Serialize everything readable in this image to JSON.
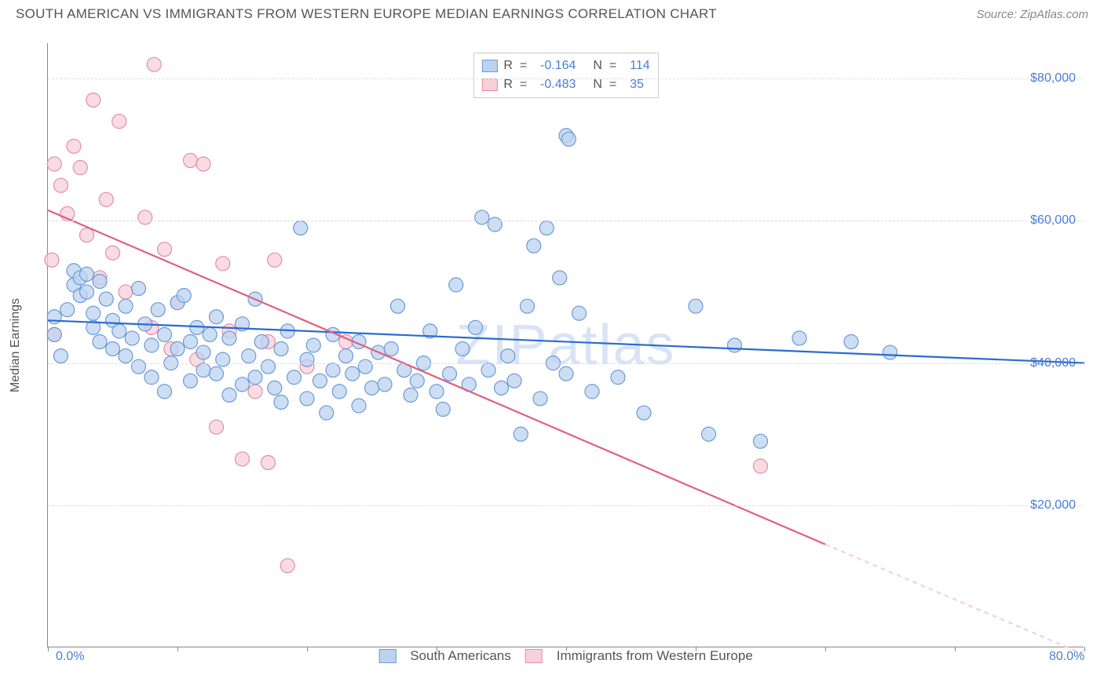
{
  "title": "SOUTH AMERICAN VS IMMIGRANTS FROM WESTERN EUROPE MEDIAN EARNINGS CORRELATION CHART",
  "source": "Source: ZipAtlas.com",
  "watermark": "ZIPatlas",
  "y_axis_label": "Median Earnings",
  "chart": {
    "type": "scatter",
    "xlim": [
      0,
      80
    ],
    "ylim": [
      0,
      85000
    ],
    "x_ticks": [
      0,
      10,
      20,
      30,
      40,
      50,
      60,
      70,
      80
    ],
    "x_tick_labels_shown": {
      "0": "0.0%",
      "80": "80.0%"
    },
    "y_ticks": [
      20000,
      40000,
      60000,
      80000
    ],
    "y_tick_labels": [
      "$20,000",
      "$40,000",
      "$60,000",
      "$80,000"
    ],
    "grid_color": "#dddddd",
    "axis_color": "#888888",
    "background_color": "#ffffff",
    "marker_radius": 9,
    "marker_stroke_width": 1.2,
    "trend_line_width": 2.2
  },
  "series": [
    {
      "name": "South Americans",
      "fill_color": "#bcd3f0",
      "stroke_color": "#6a9ad8",
      "line_color": "#2b6bd1",
      "R": "-0.164",
      "N": "114",
      "trend": {
        "x1": 0,
        "y1": 46000,
        "x2": 80,
        "y2": 40000
      },
      "points": [
        [
          0.5,
          44000
        ],
        [
          0.5,
          46500
        ],
        [
          1,
          41000
        ],
        [
          1.5,
          47500
        ],
        [
          2,
          51000
        ],
        [
          2,
          53000
        ],
        [
          2.5,
          52000
        ],
        [
          2.5,
          49500
        ],
        [
          3,
          52500
        ],
        [
          3,
          50000
        ],
        [
          3.5,
          47000
        ],
        [
          3.5,
          45000
        ],
        [
          4,
          51500
        ],
        [
          4,
          43000
        ],
        [
          4.5,
          49000
        ],
        [
          5,
          46000
        ],
        [
          5,
          42000
        ],
        [
          5.5,
          44500
        ],
        [
          6,
          48000
        ],
        [
          6,
          41000
        ],
        [
          6.5,
          43500
        ],
        [
          7,
          50500
        ],
        [
          7,
          39500
        ],
        [
          7.5,
          45500
        ],
        [
          8,
          42500
        ],
        [
          8,
          38000
        ],
        [
          8.5,
          47500
        ],
        [
          9,
          36000
        ],
        [
          9,
          44000
        ],
        [
          9.5,
          40000
        ],
        [
          10,
          48500
        ],
        [
          10,
          42000
        ],
        [
          10.5,
          49500
        ],
        [
          11,
          43000
        ],
        [
          11,
          37500
        ],
        [
          11.5,
          45000
        ],
        [
          12,
          39000
        ],
        [
          12,
          41500
        ],
        [
          12.5,
          44000
        ],
        [
          13,
          38500
        ],
        [
          13,
          46500
        ],
        [
          13.5,
          40500
        ],
        [
          14,
          35500
        ],
        [
          14,
          43500
        ],
        [
          15,
          37000
        ],
        [
          15,
          45500
        ],
        [
          15.5,
          41000
        ],
        [
          16,
          38000
        ],
        [
          16,
          49000
        ],
        [
          16.5,
          43000
        ],
        [
          17,
          39500
        ],
        [
          17.5,
          36500
        ],
        [
          18,
          42000
        ],
        [
          18,
          34500
        ],
        [
          18.5,
          44500
        ],
        [
          19,
          38000
        ],
        [
          19.5,
          59000
        ],
        [
          20,
          40500
        ],
        [
          20,
          35000
        ],
        [
          20.5,
          42500
        ],
        [
          21,
          37500
        ],
        [
          21.5,
          33000
        ],
        [
          22,
          39000
        ],
        [
          22,
          44000
        ],
        [
          22.5,
          36000
        ],
        [
          23,
          41000
        ],
        [
          23.5,
          38500
        ],
        [
          24,
          34000
        ],
        [
          24,
          43000
        ],
        [
          24.5,
          39500
        ],
        [
          25,
          36500
        ],
        [
          25.5,
          41500
        ],
        [
          26,
          37000
        ],
        [
          26.5,
          42000
        ],
        [
          27,
          48000
        ],
        [
          27.5,
          39000
        ],
        [
          28,
          35500
        ],
        [
          28.5,
          37500
        ],
        [
          29,
          40000
        ],
        [
          29.5,
          44500
        ],
        [
          30,
          36000
        ],
        [
          30.5,
          33500
        ],
        [
          31,
          38500
        ],
        [
          31.5,
          51000
        ],
        [
          32,
          42000
        ],
        [
          32.5,
          37000
        ],
        [
          33,
          45000
        ],
        [
          33.5,
          60500
        ],
        [
          34,
          39000
        ],
        [
          34.5,
          59500
        ],
        [
          35,
          36500
        ],
        [
          35.5,
          41000
        ],
        [
          36,
          37500
        ],
        [
          36.5,
          30000
        ],
        [
          37,
          48000
        ],
        [
          37.5,
          56500
        ],
        [
          38,
          35000
        ],
        [
          38.5,
          59000
        ],
        [
          39,
          40000
        ],
        [
          39.5,
          52000
        ],
        [
          40,
          38500
        ],
        [
          40,
          72000
        ],
        [
          40.2,
          71500
        ],
        [
          41,
          47000
        ],
        [
          42,
          36000
        ],
        [
          44,
          38000
        ],
        [
          46,
          33000
        ],
        [
          50,
          48000
        ],
        [
          51,
          30000
        ],
        [
          53,
          42500
        ],
        [
          55,
          29000
        ],
        [
          58,
          43500
        ],
        [
          62,
          43000
        ],
        [
          65,
          41500
        ]
      ]
    },
    {
      "name": "Immigrants from Western Europe",
      "fill_color": "#f7d0da",
      "stroke_color": "#e58da5",
      "line_color": "#e0607f",
      "R": "-0.483",
      "N": "35",
      "trend": {
        "x1": 0,
        "y1": 61500,
        "x2": 60,
        "y2": 14500
      },
      "trend_dashed_extend": {
        "x1": 60,
        "y1": 14500,
        "x2": 80,
        "y2": -1000
      },
      "points": [
        [
          0.5,
          68000
        ],
        [
          0.3,
          54500
        ],
        [
          0.5,
          44000
        ],
        [
          1,
          65000
        ],
        [
          1.5,
          61000
        ],
        [
          2,
          70500
        ],
        [
          2.5,
          67500
        ],
        [
          3,
          58000
        ],
        [
          3.5,
          77000
        ],
        [
          4,
          52000
        ],
        [
          4.5,
          63000
        ],
        [
          5,
          55500
        ],
        [
          5.5,
          74000
        ],
        [
          6,
          50000
        ],
        [
          7.5,
          60500
        ],
        [
          8.2,
          82000
        ],
        [
          8,
          45000
        ],
        [
          9,
          56000
        ],
        [
          9.5,
          42000
        ],
        [
          10,
          48500
        ],
        [
          11,
          68500
        ],
        [
          11.5,
          40500
        ],
        [
          12,
          68000
        ],
        [
          13,
          31000
        ],
        [
          13.5,
          54000
        ],
        [
          14,
          44500
        ],
        [
          15,
          26500
        ],
        [
          16,
          36000
        ],
        [
          17,
          43000
        ],
        [
          17,
          26000
        ],
        [
          17.5,
          54500
        ],
        [
          18.5,
          11500
        ],
        [
          20,
          39500
        ],
        [
          23,
          43000
        ],
        [
          55,
          25500
        ]
      ]
    }
  ],
  "legend_labels": {
    "R": "R  =  ",
    "N": "N  =  "
  },
  "bottom_legend": [
    "South Americans",
    "Immigrants from Western Europe"
  ]
}
